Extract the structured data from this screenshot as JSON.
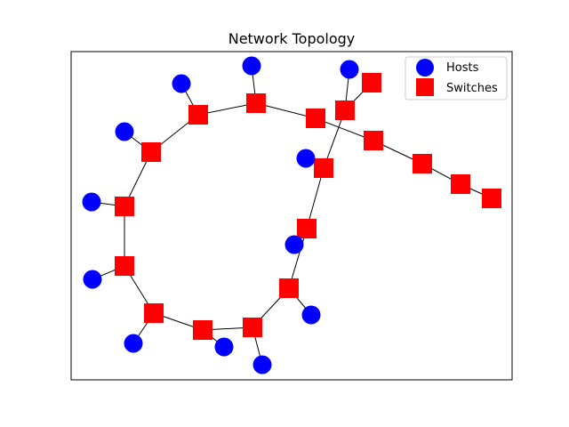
{
  "title": "Network Topology",
  "legend": {
    "placement": "top-right",
    "items": [
      {
        "label": "Hosts",
        "marker": "circle",
        "color": "#0000ff"
      },
      {
        "label": "Switches",
        "marker": "square",
        "color": "#ff0000"
      }
    ]
  },
  "colors": {
    "host": "#0000ff",
    "switch": "#ff0000",
    "edge": "#000000",
    "frame": "#000000"
  }
}
